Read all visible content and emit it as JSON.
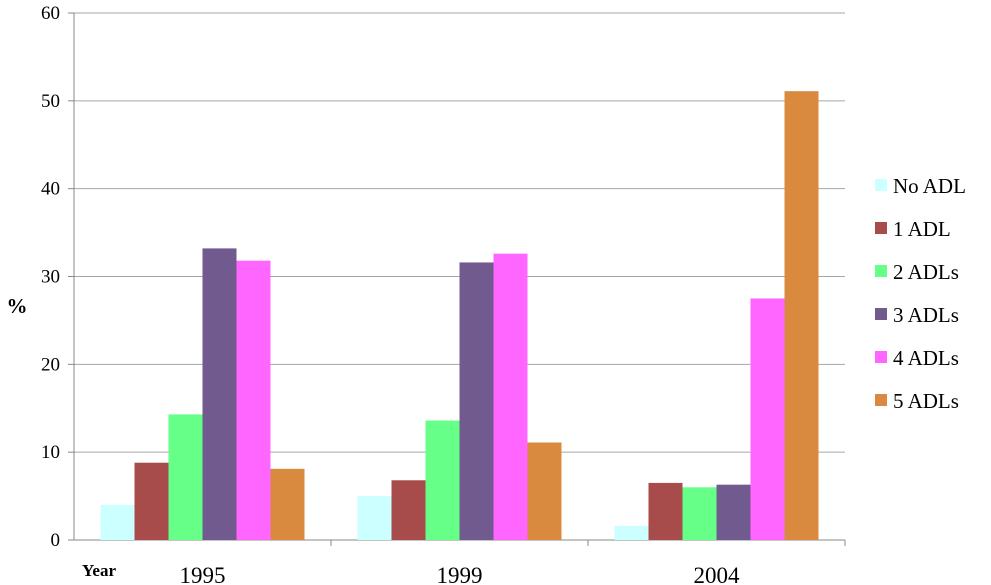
{
  "chart_data": {
    "type": "bar",
    "categories": [
      "1995",
      "1999",
      "2004"
    ],
    "series": [
      {
        "name": "No ADL",
        "color": "#ccffff",
        "values": [
          4.0,
          5.0,
          1.6
        ]
      },
      {
        "name": "1 ADL",
        "color": "#a84b4b",
        "values": [
          8.8,
          6.8,
          6.5
        ]
      },
      {
        "name": "2 ADLs",
        "color": "#66ff88",
        "values": [
          14.3,
          13.6,
          6.0
        ]
      },
      {
        "name": "3 ADLs",
        "color": "#715a8e",
        "values": [
          33.2,
          31.6,
          6.3
        ]
      },
      {
        "name": "4 ADLs",
        "color": "#ff66ff",
        "values": [
          31.8,
          32.6,
          27.5
        ]
      },
      {
        "name": "5 ADLs",
        "color": "#da8a3e",
        "values": [
          8.1,
          11.1,
          51.1
        ]
      }
    ],
    "ylabel": "%",
    "xlabel": "Year",
    "ylim": [
      0,
      60
    ],
    "yticks": [
      "0",
      "10",
      "20",
      "30",
      "40",
      "50",
      "60"
    ],
    "grid": true,
    "legend_position": "right"
  }
}
